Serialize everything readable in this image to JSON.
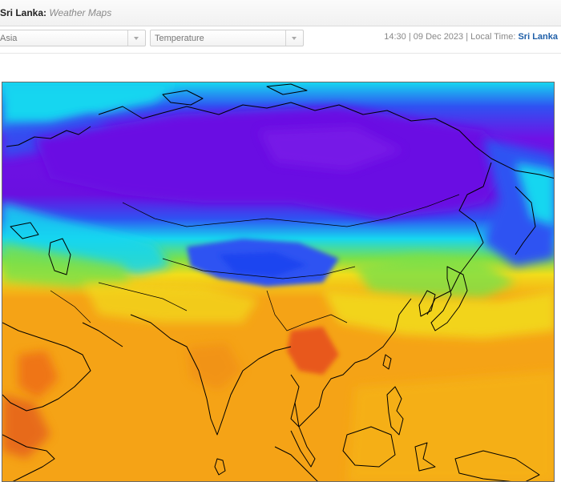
{
  "header": {
    "location": "Sri Lanka:",
    "subtitle": "Weather Maps"
  },
  "toolbar": {
    "region_select": {
      "value": "Asia"
    },
    "parameter_select": {
      "value": "Temperature"
    },
    "status": {
      "time": "14:30",
      "date": "09 Dec 2023",
      "local_time_label": "Local Time:",
      "location_link": "Sri Lanka",
      "separator": "|"
    }
  },
  "map": {
    "icon": "temperature-map",
    "colors": {
      "cold_violet": "#6f12e6",
      "cold_blue": "#2f52f2",
      "cyan": "#16d6f0",
      "green": "#7be04a",
      "yellow": "#f2dd1a",
      "orange": "#f5a316",
      "red_orange": "#ee6d18",
      "coastline": "#000000"
    }
  }
}
